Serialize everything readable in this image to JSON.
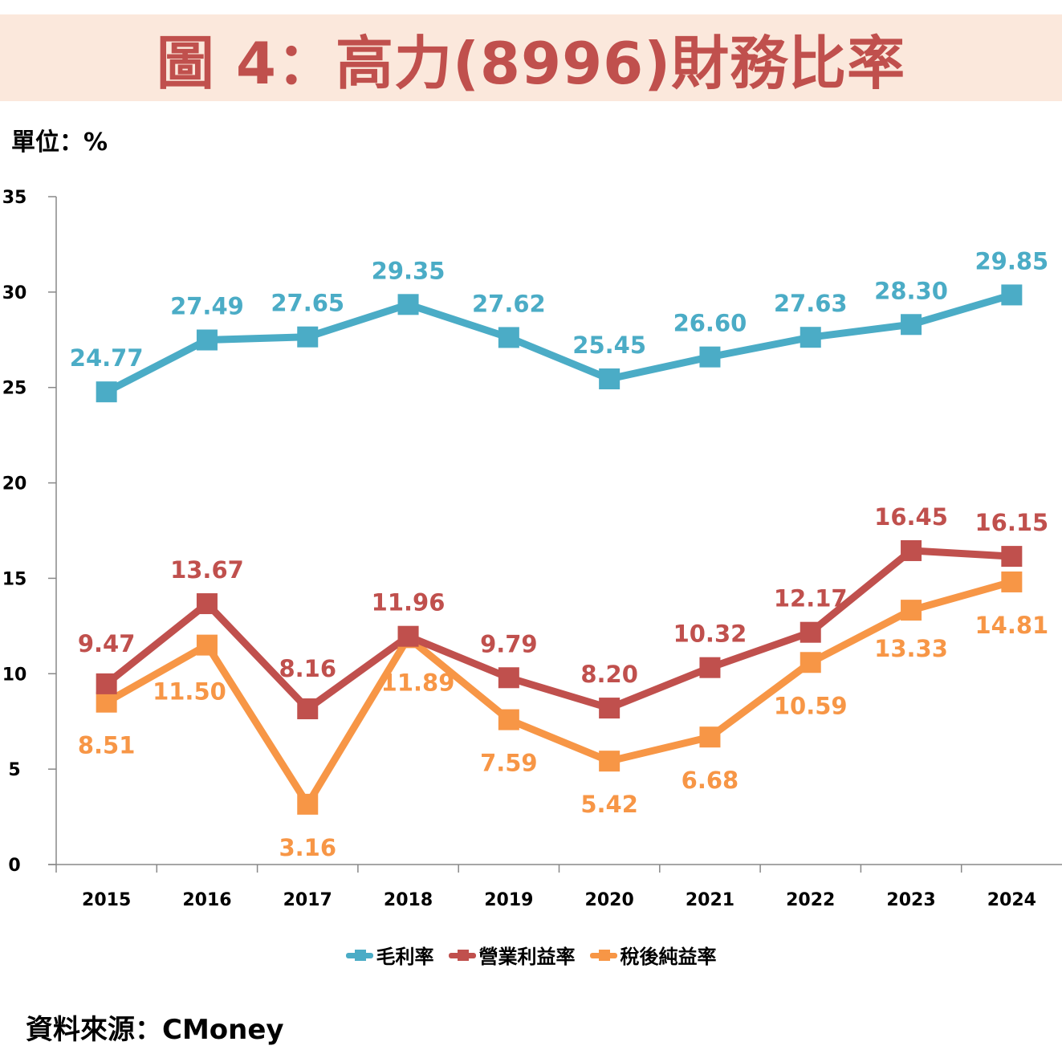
{
  "header": {
    "title": "圖 4：高力(8996)財務比率",
    "unit": "單位：%"
  },
  "footer": {
    "source": "資料來源：CMoney"
  },
  "colors": {
    "title_band": "#fbe8dc",
    "title_text": "#c0504d",
    "gross_margin": "#4bacc6",
    "operating_margin": "#c0504d",
    "net_margin": "#f79646",
    "axis": "#888888"
  },
  "chart_data": {
    "type": "line",
    "title": "圖 4：高力(8996)財務比率",
    "xlabel": "",
    "ylabel": "單位：%",
    "categories": [
      "2015",
      "2016",
      "2017",
      "2018",
      "2019",
      "2020",
      "2021",
      "2022",
      "2023",
      "2024"
    ],
    "ylim": [
      0,
      35
    ],
    "yticks": [
      0,
      5,
      10,
      15,
      20,
      25,
      30,
      35
    ],
    "grid": false,
    "legend_position": "bottom",
    "series": [
      {
        "name": "毛利率",
        "color": "#4bacc6",
        "marker": "square",
        "values": [
          24.77,
          27.49,
          27.65,
          29.35,
          27.62,
          25.45,
          26.6,
          27.63,
          28.3,
          29.85
        ],
        "labels": [
          "24.77",
          "27.49",
          "27.65",
          "29.35",
          "27.62",
          "25.45",
          "26.60",
          "27.63",
          "28.30",
          "29.85"
        ],
        "label_position": "above"
      },
      {
        "name": "營業利益率",
        "color": "#c0504d",
        "marker": "square",
        "values": [
          9.47,
          13.67,
          8.16,
          11.96,
          9.79,
          8.2,
          10.32,
          12.17,
          16.45,
          16.15
        ],
        "labels": [
          "9.47",
          "13.67",
          "8.16",
          "11.96",
          "9.79",
          "8.20",
          "10.32",
          "12.17",
          "16.45",
          "16.15"
        ],
        "label_position": "above"
      },
      {
        "name": "稅後純益率",
        "color": "#f79646",
        "marker": "square",
        "values": [
          8.51,
          11.5,
          3.16,
          11.89,
          7.59,
          5.42,
          6.68,
          10.59,
          13.33,
          14.81
        ],
        "labels": [
          "8.51",
          "11.50",
          "3.16",
          "11.89",
          "7.59",
          "5.42",
          "6.68",
          "10.59",
          "13.33",
          "14.81"
        ],
        "label_position": "below"
      }
    ]
  }
}
